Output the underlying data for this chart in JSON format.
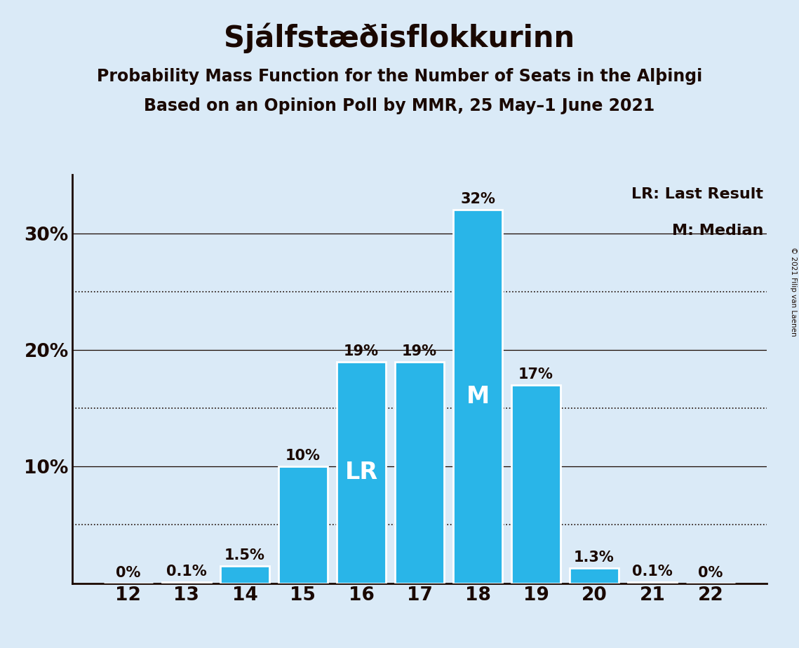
{
  "title": "Sjálfstæðisflokkurinn",
  "subtitle1": "Probability Mass Function for the Number of Seats in the Alþingi",
  "subtitle2": "Based on an Opinion Poll by MMR, 25 May–1 June 2021",
  "copyright": "© 2021 Filip van Laenen",
  "categories": [
    12,
    13,
    14,
    15,
    16,
    17,
    18,
    19,
    20,
    21,
    22
  ],
  "values": [
    0.0,
    0.1,
    1.5,
    10.0,
    19.0,
    19.0,
    32.0,
    17.0,
    1.3,
    0.1,
    0.0
  ],
  "bar_color": "#29b5e8",
  "background_color": "#daeaf7",
  "text_color": "#1a0800",
  "bar_labels": [
    "0%",
    "0.1%",
    "1.5%",
    "10%",
    "19%",
    "19%",
    "32%",
    "17%",
    "1.3%",
    "0.1%",
    "0%"
  ],
  "lr_bar_index": 4,
  "median_bar_index": 6,
  "lr_label": "LR",
  "median_label": "M",
  "legend_lr": "LR: Last Result",
  "legend_m": "M: Median",
  "ylim": [
    0,
    35
  ],
  "yticks": [
    0,
    10,
    20,
    30
  ],
  "ytick_labels": [
    "",
    "10%",
    "20%",
    "30%"
  ],
  "dotted_gridlines": [
    5,
    15,
    25
  ],
  "solid_gridlines": [
    10,
    20,
    30
  ],
  "title_fontsize": 30,
  "subtitle_fontsize": 17,
  "bar_label_fontsize": 15,
  "axis_label_fontsize": 19,
  "annotation_fontsize": 24,
  "legend_fontsize": 16
}
